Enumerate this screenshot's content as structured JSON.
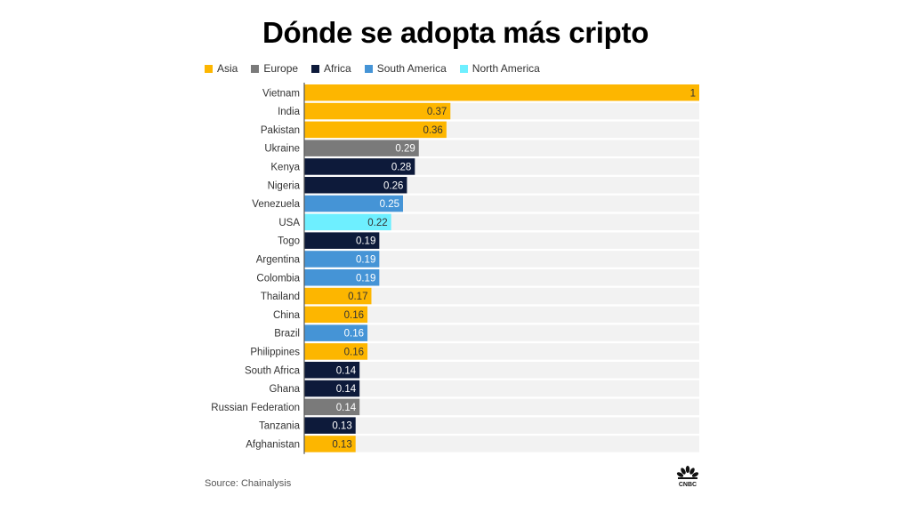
{
  "title": "Dónde se adopta más cripto",
  "source": "Source: Chainalysis",
  "logo": "CNBC",
  "legend": [
    {
      "label": "Asia",
      "color": "#FDB600"
    },
    {
      "label": "Europe",
      "color": "#7A7A7A"
    },
    {
      "label": "Africa",
      "color": "#0D1A3A"
    },
    {
      "label": "South America",
      "color": "#4594D6"
    },
    {
      "label": "North America",
      "color": "#6EEFFF"
    }
  ],
  "chart_data": {
    "type": "bar",
    "orientation": "horizontal",
    "title": "Dónde se adopta más cripto",
    "xlabel": "",
    "ylabel": "",
    "xlim": [
      0,
      1
    ],
    "grid": false,
    "legend_position": "top-left",
    "categories": [
      "Vietnam",
      "India",
      "Pakistan",
      "Ukraine",
      "Kenya",
      "Nigeria",
      "Venezuela",
      "USA",
      "Togo",
      "Argentina",
      "Colombia",
      "Thailand",
      "China",
      "Brazil",
      "Philippines",
      "South Africa",
      "Ghana",
      "Russian Federation",
      "Tanzania",
      "Afghanistan"
    ],
    "values": [
      1,
      0.37,
      0.36,
      0.29,
      0.28,
      0.26,
      0.25,
      0.22,
      0.19,
      0.19,
      0.19,
      0.17,
      0.16,
      0.16,
      0.16,
      0.14,
      0.14,
      0.14,
      0.13,
      0.13
    ],
    "value_labels": [
      "1",
      "0.37",
      "0.36",
      "0.29",
      "0.28",
      "0.26",
      "0.25",
      "0.22",
      "0.19",
      "0.19",
      "0.19",
      "0.17",
      "0.16",
      "0.16",
      "0.16",
      "0.14",
      "0.14",
      "0.14",
      "0.13",
      "0.13"
    ],
    "regions": [
      "Asia",
      "Asia",
      "Asia",
      "Europe",
      "Africa",
      "Africa",
      "South America",
      "North America",
      "Africa",
      "South America",
      "South America",
      "Asia",
      "Asia",
      "South America",
      "Asia",
      "Africa",
      "Africa",
      "Europe",
      "Africa",
      "Asia"
    ],
    "region_colors": {
      "Asia": "#FDB600",
      "Europe": "#7A7A7A",
      "Africa": "#0D1A3A",
      "South America": "#4594D6",
      "North America": "#6EEFFF"
    },
    "label_colors": {
      "Asia": "#333333",
      "Europe": "#FFFFFF",
      "Africa": "#FFFFFF",
      "South America": "#FFFFFF",
      "North America": "#333333"
    },
    "track_color": "#F2F2F2",
    "source": "Source: Chainalysis"
  }
}
